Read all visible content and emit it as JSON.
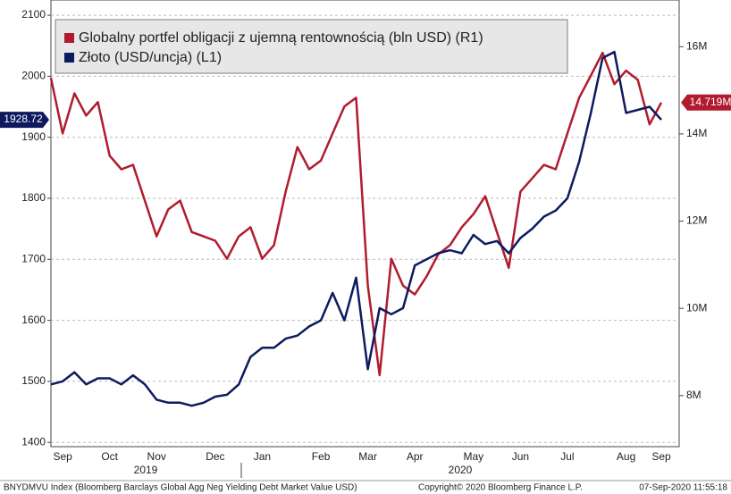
{
  "chart_data": {
    "type": "line",
    "categories": [
      null,
      "Sep",
      null,
      null,
      null,
      "Oct",
      null,
      null,
      null,
      "Nov",
      null,
      null,
      null,
      null,
      "Dec",
      null,
      null,
      null,
      "Jan",
      null,
      null,
      null,
      null,
      "Feb",
      null,
      null,
      null,
      "Mar",
      null,
      null,
      null,
      "Apr",
      null,
      null,
      null,
      null,
      "May",
      null,
      null,
      null,
      "Jun",
      null,
      null,
      null,
      "Jul",
      null,
      null,
      null,
      null,
      "Aug",
      null,
      null,
      "Sep"
    ],
    "year_labels": [
      "2019",
      "2020"
    ],
    "series": [
      {
        "name": "Globalny portfel obligacji z ujemną rentownością (bln USD) (R1)",
        "color": "#b01c2e",
        "axis": "y2",
        "values": [
          15.28,
          14.01,
          14.93,
          14.42,
          14.73,
          13.5,
          13.19,
          13.29,
          12.47,
          11.65,
          12.27,
          12.47,
          11.75,
          11.65,
          11.55,
          11.14,
          11.65,
          11.86,
          11.14,
          11.45,
          12.68,
          13.7,
          13.19,
          13.39,
          14.01,
          14.63,
          14.83,
          10.52,
          8.47,
          11.14,
          10.52,
          10.32,
          10.73,
          11.24,
          11.45,
          11.86,
          12.16,
          12.57,
          11.75,
          10.93,
          12.68,
          12.98,
          13.29,
          13.19,
          14.01,
          14.83,
          15.34,
          15.86,
          15.14,
          15.45,
          15.24,
          14.22,
          14.719
        ],
        "value_labels": [
          null,
          null,
          null,
          null,
          null,
          null,
          null,
          null,
          null,
          null,
          null,
          null,
          null,
          null,
          null,
          null,
          null,
          null,
          null,
          null,
          null,
          null,
          null,
          null,
          null,
          null,
          null,
          null,
          null,
          null,
          null,
          null,
          null,
          null,
          null,
          null,
          null,
          null,
          null,
          null,
          null,
          null,
          null,
          null,
          null,
          null,
          null,
          null,
          null,
          null,
          null,
          null,
          "14.719M"
        ]
      },
      {
        "name": "Złoto (USD/uncja) (L1)",
        "color": "#0d1a5e",
        "values": [
          1495,
          1500,
          1515,
          1495,
          1505,
          1505,
          1495,
          1510,
          1495,
          1470,
          1465,
          1465,
          1460,
          1465,
          1475,
          1478,
          1495,
          1540,
          1555,
          1555,
          1570,
          1575,
          1590,
          1600,
          1645,
          1600,
          1670,
          1520,
          1620,
          1610,
          1620,
          1690,
          1700,
          1710,
          1715,
          1710,
          1740,
          1725,
          1730,
          1710,
          1735,
          1750,
          1770,
          1780,
          1800,
          1860,
          1940,
          2030,
          2040,
          1940,
          1945,
          1950,
          1928.72
        ],
        "value_labels": [
          null,
          null,
          null,
          null,
          null,
          null,
          null,
          null,
          null,
          null,
          null,
          null,
          null,
          null,
          null,
          null,
          null,
          null,
          null,
          null,
          null,
          null,
          null,
          null,
          null,
          null,
          null,
          null,
          null,
          null,
          null,
          null,
          null,
          null,
          null,
          null,
          null,
          null,
          null,
          null,
          null,
          null,
          null,
          null,
          null,
          null,
          null,
          null,
          null,
          null,
          null,
          null,
          "1928.72"
        ]
      }
    ],
    "ylim": [
      1393,
      2125
    ],
    "yticks": [
      1400,
      1500,
      1600,
      1700,
      1800,
      1900,
      2000,
      2100
    ],
    "y2lim": [
      6.83,
      17.07
    ],
    "y2ticks": [
      {
        "value": 8,
        "label": "8M"
      },
      {
        "value": 10,
        "label": "10M"
      },
      {
        "value": 12,
        "label": "12M"
      },
      {
        "value": 14,
        "label": "14M"
      },
      {
        "value": 16,
        "label": "16M"
      }
    ],
    "grid": true,
    "source": "BNYDMVU Index (Bloomberg Barclays Global Agg Neg Yielding Debt Market Value USD)",
    "copyright": "Copyright© 2020 Bloomberg Finance L.P.",
    "timestamp": "07-Sep-2020 11:55:18"
  }
}
